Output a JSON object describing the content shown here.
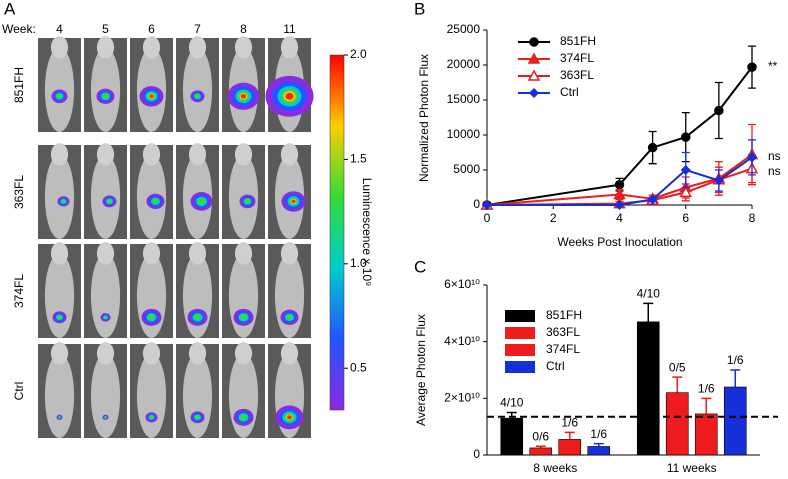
{
  "chart_data": [
    {
      "type": "image-grid",
      "panel": "A",
      "week_label": "Week:",
      "columns": [
        "4",
        "5",
        "6",
        "7",
        "8",
        "11"
      ],
      "rows": [
        "851FH",
        "363FL",
        "374FL",
        "Ctrl"
      ],
      "colorbar_label": "Luminescence x 10⁹",
      "clim": [
        0.3,
        2.0
      ],
      "cticks": [
        0.5,
        {
          "value": 1,
          "label": "1.0"
        },
        1.5,
        {
          "value": 2,
          "label": "2.0"
        }
      ]
    },
    {
      "type": "line",
      "panel": "B",
      "xlabel": "Weeks Post Inoculation",
      "ylabel": "Normalized Photon Flux",
      "x": [
        0,
        4,
        5,
        6,
        7,
        8
      ],
      "xlim": [
        0,
        8
      ],
      "xticks": [
        0,
        2,
        4,
        6,
        8
      ],
      "ylim": [
        0,
        25000
      ],
      "yticks": [
        0,
        5000,
        10000,
        15000,
        20000,
        25000
      ],
      "series": [
        {
          "name": "851FH",
          "color": "#000000",
          "marker": "circle",
          "filled": true,
          "values": [
            0,
            2900,
            8200,
            9700,
            13500,
            19700
          ],
          "errors": [
            0,
            900,
            2300,
            3500,
            4000,
            3000
          ]
        },
        {
          "name": "374FL",
          "color": "#ee1c1c",
          "marker": "triangle",
          "filled": true,
          "values": [
            0,
            1500,
            900,
            2500,
            3800,
            7200
          ],
          "errors": [
            0,
            700,
            500,
            1500,
            2400,
            4300
          ]
        },
        {
          "name": "363FL",
          "color": "#ee1c1c",
          "marker": "triangle",
          "filled": false,
          "values": [
            0,
            200,
            700,
            1800,
            3600,
            5200
          ],
          "errors": [
            0,
            300,
            400,
            1200,
            1800,
            2000
          ]
        },
        {
          "name": "Ctrl",
          "color": "#1530d8",
          "marker": "diamond",
          "filled": true,
          "values": [
            0,
            0,
            800,
            5000,
            3500,
            6800
          ],
          "errors": [
            0,
            0,
            300,
            2500,
            1500,
            2500
          ]
        }
      ],
      "annotations": [
        "**",
        "ns",
        "ns"
      ]
    },
    {
      "type": "bar",
      "panel": "C",
      "ylabel": "Average Photon Flux",
      "categories": [
        "8 weeks",
        "11 weeks"
      ],
      "ylim": [
        0,
        60000000000
      ],
      "yticks": [
        0,
        {
          "value": 20000000000,
          "label": "2×10¹⁰"
        },
        {
          "value": 40000000000,
          "label": "4×10¹⁰"
        },
        {
          "value": 60000000000,
          "label": "6×10¹⁰"
        }
      ],
      "threshold": 13500000000,
      "series": [
        {
          "name": "851FH",
          "color": "#000000",
          "values": [
            13000000000,
            47000000000
          ],
          "errors": [
            2000000000,
            6500000000
          ],
          "labels": [
            "4/10",
            "4/10"
          ]
        },
        {
          "name": "363FL",
          "color": "#ee1c1c",
          "values": [
            2500000000,
            22000000000
          ],
          "errors": [
            600000000,
            5500000000
          ],
          "labels": [
            "0/6",
            "0/5"
          ]
        },
        {
          "name": "374FL",
          "color": "#ee1c1c",
          "values": [
            5500000000,
            14500000000
          ],
          "errors": [
            2500000000,
            5500000000
          ],
          "labels": [
            "1/6",
            "1/6"
          ]
        },
        {
          "name": "Ctrl",
          "color": "#1530d8",
          "values": [
            3000000000,
            24000000000
          ],
          "errors": [
            1000000000,
            6000000000
          ],
          "labels": [
            "1/6",
            "1/6"
          ]
        }
      ]
    }
  ]
}
